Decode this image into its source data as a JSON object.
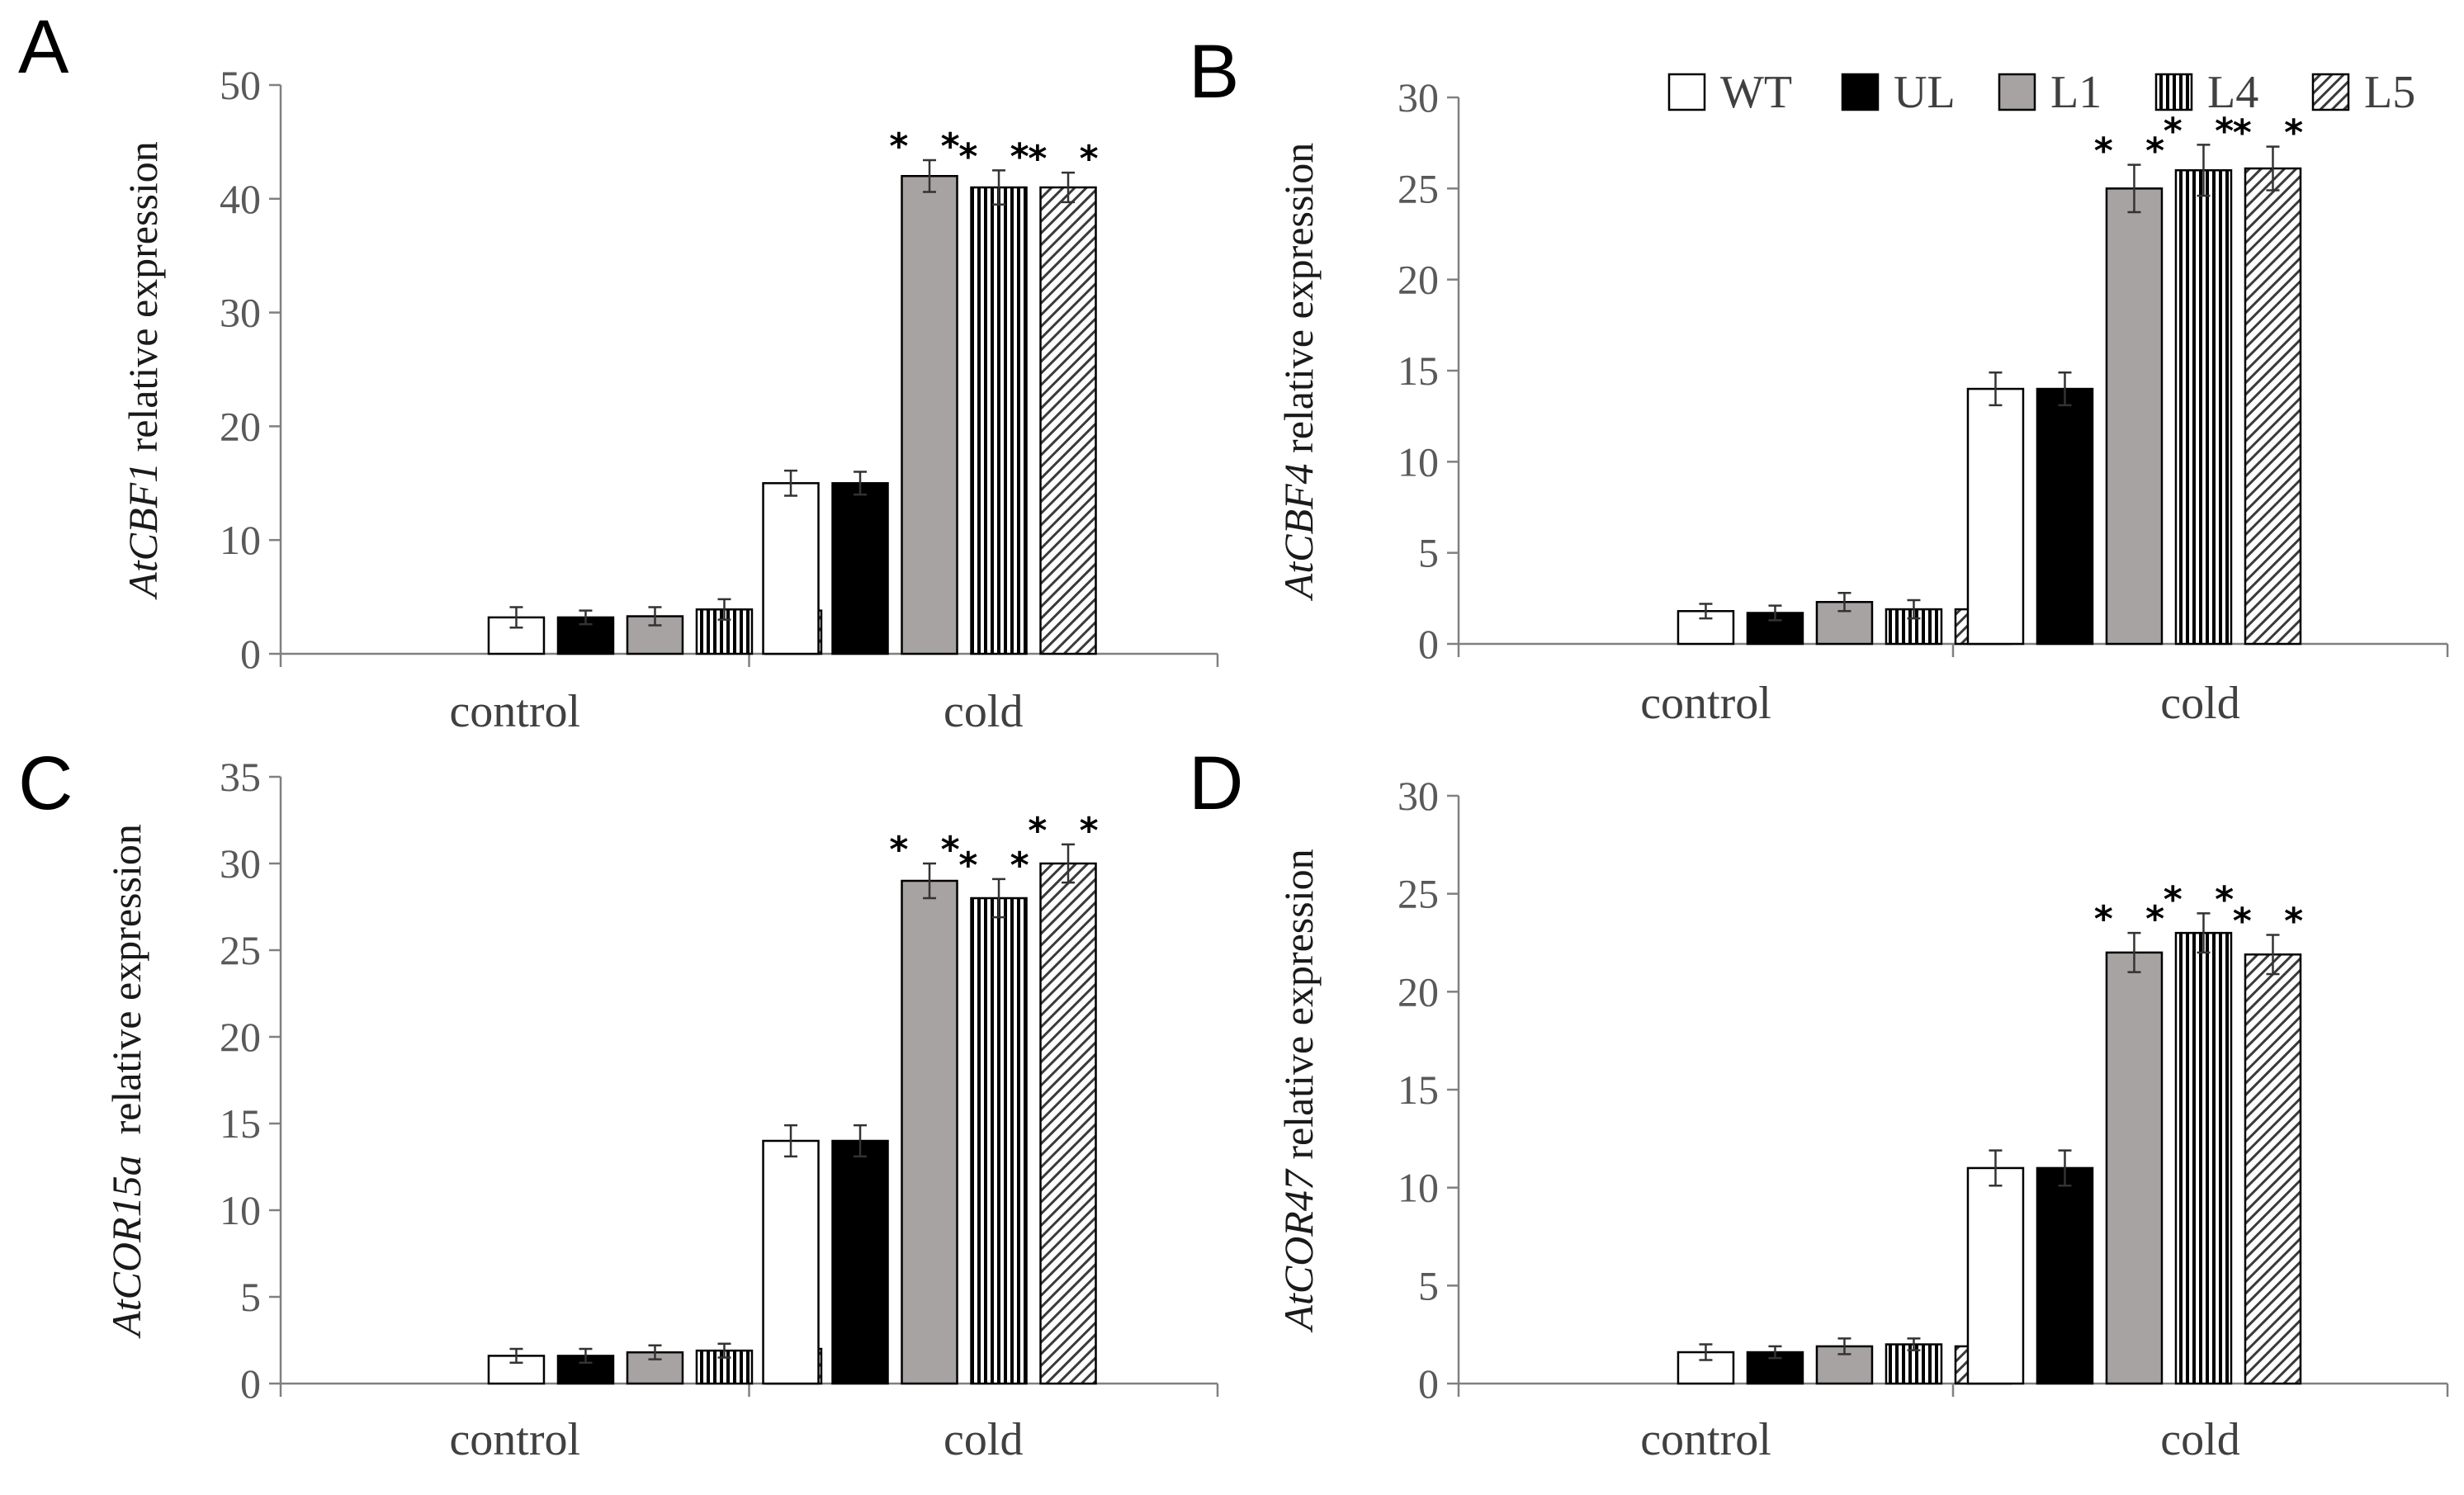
{
  "legend": {
    "entries": [
      {
        "name": "WT",
        "pattern": "white"
      },
      {
        "name": "UL",
        "pattern": "black"
      },
      {
        "name": "L1",
        "pattern": "gray"
      },
      {
        "name": "L4",
        "pattern": "vstripe"
      },
      {
        "name": "L5",
        "pattern": "diag"
      }
    ]
  },
  "colors": {
    "white": "#ffffff",
    "black": "#000000",
    "gray": "#a6a3a2",
    "axis": "#808080",
    "error": "#333333"
  },
  "chart_data": [
    {
      "panel": "A",
      "type": "bar",
      "gene": "AtCBF1",
      "ylabel_suffix": " relative expression",
      "xlabel": "",
      "categories": [
        "control",
        "cold"
      ],
      "ylim": [
        0,
        50
      ],
      "yticks": [
        0,
        10,
        20,
        30,
        40,
        50
      ],
      "series": [
        {
          "name": "WT",
          "values": [
            3.2,
            15.0
          ],
          "errors": [
            0.9,
            1.1
          ],
          "sig": [
            "",
            ""
          ]
        },
        {
          "name": "UL",
          "values": [
            3.2,
            15.0
          ],
          "errors": [
            0.6,
            1.0
          ],
          "sig": [
            "",
            ""
          ]
        },
        {
          "name": "L1",
          "values": [
            3.3,
            42.0
          ],
          "errors": [
            0.8,
            1.4
          ],
          "sig": [
            "",
            "**"
          ]
        },
        {
          "name": "L4",
          "values": [
            3.9,
            41.0
          ],
          "errors": [
            0.9,
            1.5
          ],
          "sig": [
            "",
            "**"
          ]
        },
        {
          "name": "L5",
          "values": [
            3.8,
            41.0
          ],
          "errors": [
            0.9,
            1.3
          ],
          "sig": [
            "",
            "**"
          ]
        }
      ]
    },
    {
      "panel": "B",
      "type": "bar",
      "gene": "AtCBF4",
      "ylabel_suffix": " relative expression",
      "xlabel": "",
      "categories": [
        "control",
        "cold"
      ],
      "ylim": [
        0,
        30
      ],
      "yticks": [
        0,
        5,
        10,
        15,
        20,
        25,
        30
      ],
      "series": [
        {
          "name": "WT",
          "values": [
            1.8,
            14.0
          ],
          "errors": [
            0.4,
            0.9
          ],
          "sig": [
            "",
            ""
          ]
        },
        {
          "name": "UL",
          "values": [
            1.7,
            14.0
          ],
          "errors": [
            0.4,
            0.9
          ],
          "sig": [
            "",
            ""
          ]
        },
        {
          "name": "L1",
          "values": [
            2.3,
            25.0
          ],
          "errors": [
            0.5,
            1.3
          ],
          "sig": [
            "",
            "**"
          ]
        },
        {
          "name": "L4",
          "values": [
            1.9,
            26.0
          ],
          "errors": [
            0.5,
            1.4
          ],
          "sig": [
            "",
            "**"
          ]
        },
        {
          "name": "L5",
          "values": [
            1.9,
            26.1
          ],
          "errors": [
            0.6,
            1.2
          ],
          "sig": [
            "",
            "**"
          ]
        }
      ]
    },
    {
      "panel": "C",
      "type": "bar",
      "gene": "AtCOR15a",
      "ylabel_suffix": "  relative expression",
      "xlabel": "",
      "categories": [
        "control",
        "cold"
      ],
      "ylim": [
        0,
        35
      ],
      "yticks": [
        0,
        5,
        10,
        15,
        20,
        25,
        30,
        35
      ],
      "series": [
        {
          "name": "WT",
          "values": [
            1.6,
            14.0
          ],
          "errors": [
            0.4,
            0.9
          ],
          "sig": [
            "",
            ""
          ]
        },
        {
          "name": "UL",
          "values": [
            1.6,
            14.0
          ],
          "errors": [
            0.4,
            0.9
          ],
          "sig": [
            "",
            ""
          ]
        },
        {
          "name": "L1",
          "values": [
            1.8,
            29.0
          ],
          "errors": [
            0.4,
            1.0
          ],
          "sig": [
            "",
            "**"
          ]
        },
        {
          "name": "L4",
          "values": [
            1.9,
            28.0
          ],
          "errors": [
            0.4,
            1.1
          ],
          "sig": [
            "",
            "**"
          ]
        },
        {
          "name": "L5",
          "values": [
            2.0,
            30.0
          ],
          "errors": [
            0.5,
            1.1
          ],
          "sig": [
            "",
            "**"
          ]
        }
      ]
    },
    {
      "panel": "D",
      "type": "bar",
      "gene": "AtCOR47",
      "ylabel_suffix": " relative expression",
      "xlabel": "",
      "categories": [
        "control",
        "cold"
      ],
      "ylim": [
        0,
        30
      ],
      "yticks": [
        0,
        5,
        10,
        15,
        20,
        25,
        30
      ],
      "series": [
        {
          "name": "WT",
          "values": [
            1.6,
            11.0
          ],
          "errors": [
            0.4,
            0.9
          ],
          "sig": [
            "",
            ""
          ]
        },
        {
          "name": "UL",
          "values": [
            1.6,
            11.0
          ],
          "errors": [
            0.3,
            0.9
          ],
          "sig": [
            "",
            ""
          ]
        },
        {
          "name": "L1",
          "values": [
            1.9,
            22.0
          ],
          "errors": [
            0.4,
            1.0
          ],
          "sig": [
            "",
            "**"
          ]
        },
        {
          "name": "L4",
          "values": [
            2.0,
            23.0
          ],
          "errors": [
            0.3,
            1.0
          ],
          "sig": [
            "",
            "**"
          ]
        },
        {
          "name": "L5",
          "values": [
            1.9,
            21.9
          ],
          "errors": [
            0.3,
            1.0
          ],
          "sig": [
            "",
            "**"
          ]
        }
      ]
    }
  ]
}
